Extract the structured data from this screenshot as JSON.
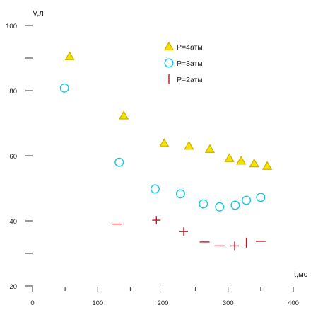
{
  "chart_data": {
    "type": "scatter",
    "title": "",
    "xlabel": "t,мс",
    "ylabel": "V,л",
    "xlim": [
      0,
      400
    ],
    "ylim": [
      20,
      100
    ],
    "x_ticks": [
      {
        "value": 0,
        "label": "0"
      },
      {
        "value": 100,
        "label": "100"
      },
      {
        "value": 200,
        "label": "200"
      },
      {
        "value": 300,
        "label": "300"
      },
      {
        "value": 400,
        "label": "400"
      }
    ],
    "y_ticks": [
      {
        "value": 20,
        "label": "20"
      },
      {
        "value": 30,
        "label": ""
      },
      {
        "value": 40,
        "label": "40"
      },
      {
        "value": 60,
        "label": "60"
      },
      {
        "value": 80,
        "label": "80"
      },
      {
        "value": 90,
        "label": ""
      },
      {
        "value": 100,
        "label": "100"
      }
    ],
    "legend_position": "top-right",
    "series": [
      {
        "name": "P=4атм",
        "marker": "triangle",
        "color": "#d4b000",
        "fill": "#f2e600",
        "x": [
          57,
          140,
          202,
          240,
          272,
          302,
          320,
          340,
          360
        ],
        "y": [
          90.5,
          72.3,
          63.8,
          63.0,
          62.0,
          59.2,
          58.4,
          57.6,
          56.8
        ]
      },
      {
        "name": "P=3атм",
        "marker": "circle",
        "color": "#12c8e2",
        "x": [
          49,
          133,
          188,
          227,
          262,
          287,
          311,
          328,
          350
        ],
        "y": [
          80.8,
          58.0,
          49.8,
          48.3,
          45.2,
          44.3,
          44.8,
          46.3,
          47.2
        ]
      },
      {
        "name": "P=2атм",
        "marker": "dash",
        "color": "#c0181e",
        "points": [
          {
            "x": 130,
            "y": 39.0,
            "shape": "dash"
          },
          {
            "x": 190,
            "y": 40.2,
            "shape": "plus"
          },
          {
            "x": 232,
            "y": 36.7,
            "shape": "plus"
          },
          {
            "x": 264,
            "y": 33.5,
            "shape": "dash"
          },
          {
            "x": 287,
            "y": 32.3,
            "shape": "dash"
          },
          {
            "x": 310,
            "y": 32.3,
            "shape": "plus"
          },
          {
            "x": 328,
            "y": 33.3,
            "shape": "vline"
          },
          {
            "x": 350,
            "y": 33.7,
            "shape": "dash"
          }
        ]
      }
    ]
  }
}
